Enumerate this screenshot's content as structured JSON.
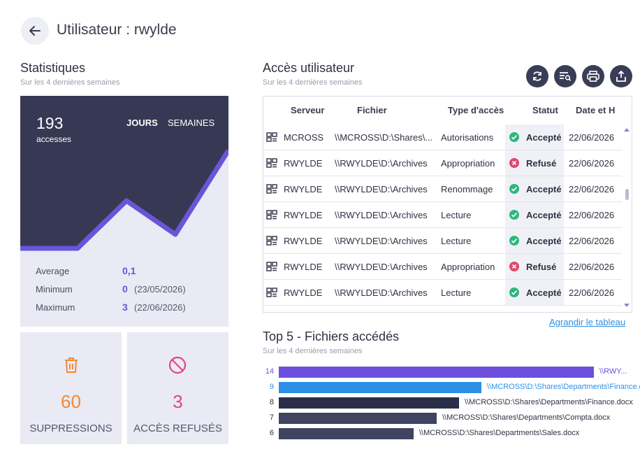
{
  "header": {
    "title": "Utilisateur : rwylde"
  },
  "stats": {
    "title": "Statistiques",
    "subtitle": "Sur les 4 dernières semaines",
    "total": "193",
    "total_label": "accesses",
    "toggle_days": "JOURS",
    "toggle_weeks": "SEMAINES",
    "average_label": "Average",
    "average_value": "0,1",
    "min_label": "Minimum",
    "min_value": "0",
    "min_date": "(23/05/2026)",
    "max_label": "Maximum",
    "max_value": "3",
    "max_date": "(22/06/2026)"
  },
  "cards": {
    "deletions_value": "60",
    "deletions_label": "SUPPRESSIONS",
    "denied_value": "3",
    "denied_label": "ACCÈS REFUSÉS"
  },
  "access": {
    "title": "Accès utilisateur",
    "subtitle": "Sur les 4 dernières semaines",
    "columns": [
      "Serveur",
      "Fichier",
      "Type d'accès",
      "Statut",
      "Date et H"
    ],
    "rows": [
      {
        "server": "MCROSS",
        "file": "\\\\MCROSS\\D:\\Shares\\...",
        "type": "Autorisations",
        "status": "Accepté",
        "ok": true,
        "date": "22/06/2026"
      },
      {
        "server": "RWYLDE",
        "file": "\\\\RWYLDE\\D:\\Archives",
        "type": "Appropriation",
        "status": "Refusé",
        "ok": false,
        "date": "22/06/2026"
      },
      {
        "server": "RWYLDE",
        "file": "\\\\RWYLDE\\D:\\Archives",
        "type": "Renommage",
        "status": "Accepté",
        "ok": true,
        "date": "22/06/2026"
      },
      {
        "server": "RWYLDE",
        "file": "\\\\RWYLDE\\D:\\Archives",
        "type": "Lecture",
        "status": "Accepté",
        "ok": true,
        "date": "22/06/2026"
      },
      {
        "server": "RWYLDE",
        "file": "\\\\RWYLDE\\D:\\Archives",
        "type": "Lecture",
        "status": "Accepté",
        "ok": true,
        "date": "22/06/2026"
      },
      {
        "server": "RWYLDE",
        "file": "\\\\RWYLDE\\D:\\Archives",
        "type": "Appropriation",
        "status": "Refusé",
        "ok": false,
        "date": "22/06/2026"
      },
      {
        "server": "RWYLDE",
        "file": "\\\\RWYLDE\\D:\\Archives",
        "type": "Lecture",
        "status": "Accepté",
        "ok": true,
        "date": "22/06/2026"
      }
    ],
    "expand_link": "Agrandir le tableau"
  },
  "top5": {
    "title": "Top 5 - Fichiers accédés",
    "subtitle": "Sur les 4 dernières semaines",
    "items": [
      {
        "count": "14",
        "value": 14,
        "path": "\\\\RWY...",
        "color": "#6c4fdc"
      },
      {
        "count": "9",
        "value": 9,
        "path": "\\\\MCROSS\\D:\\Shares\\Departments\\Finance.docx",
        "color": "#2d8fe6"
      },
      {
        "count": "8",
        "value": 8,
        "path": "\\\\MCROSS\\D:\\Shares\\Departments\\Finance.docx",
        "color": "#2c2f4a"
      },
      {
        "count": "7",
        "value": 7,
        "path": "\\\\MCROSS\\D:\\Shares\\Departments\\Compta.docx",
        "color": "#3f4460"
      },
      {
        "count": "6",
        "value": 6,
        "path": "\\\\MCROSS\\D:\\Shares\\Departments\\Sales.docx",
        "color": "#3f4460"
      }
    ]
  },
  "colors": {
    "accent": "#6a55d8",
    "accepted": "#2fb67c",
    "refused": "#e2476a",
    "orange": "#f08a3c",
    "pink": "#e0487a"
  }
}
